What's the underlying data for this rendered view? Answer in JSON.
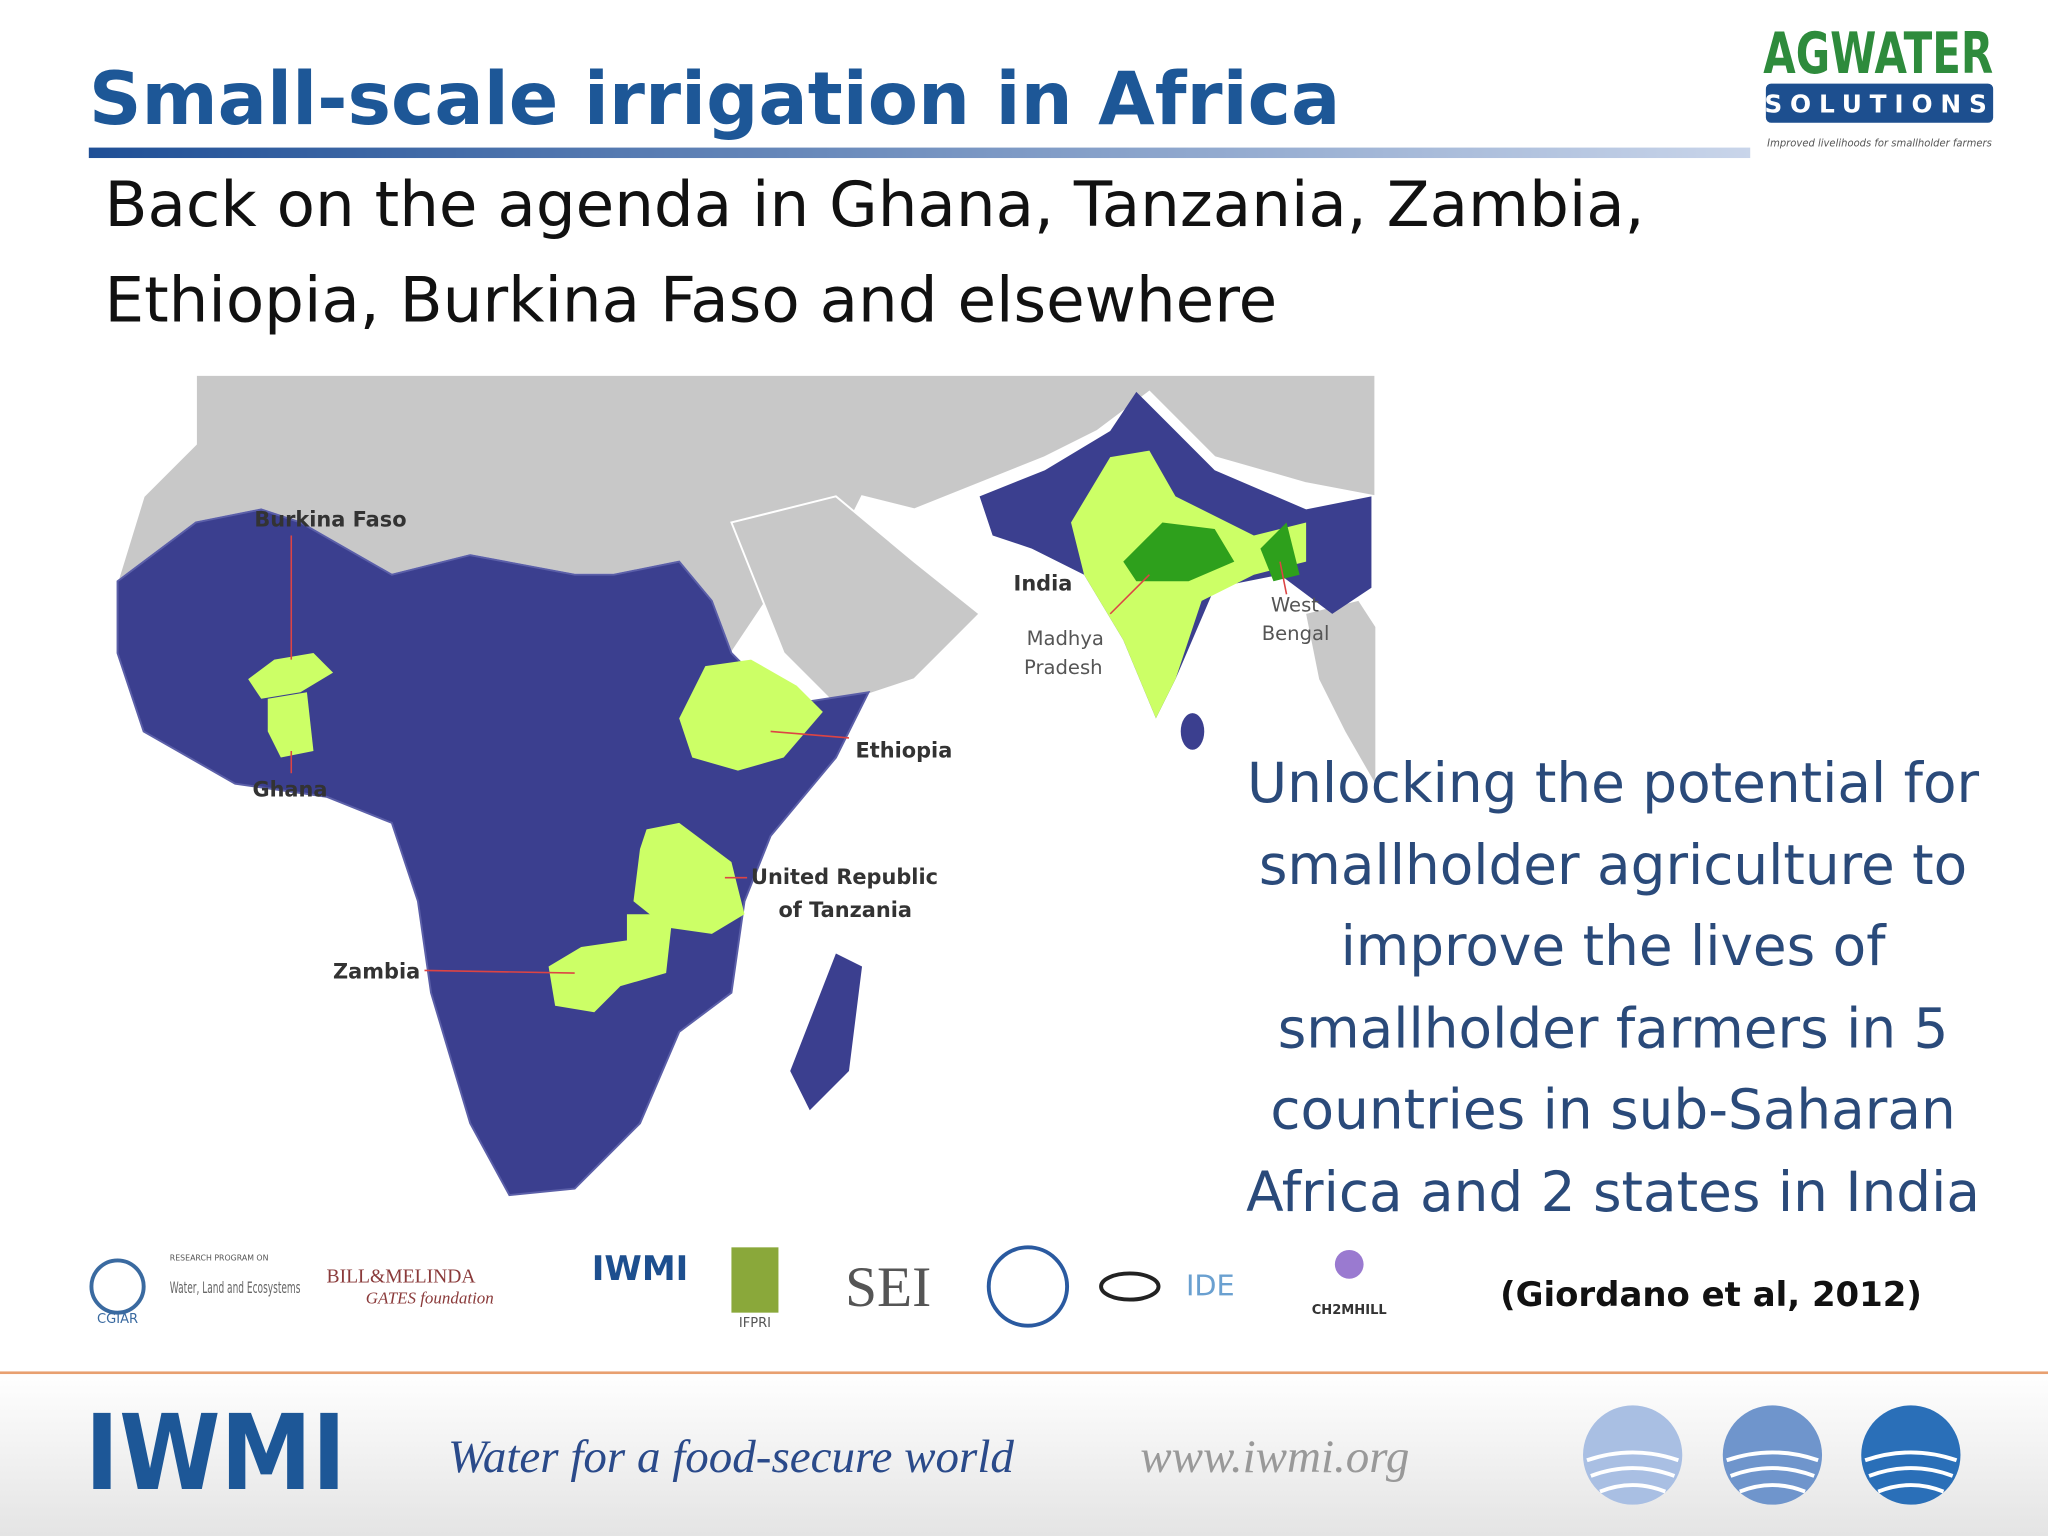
{
  "header": {
    "title": "Small-scale irrigation in Africa",
    "subtitle_lines": [
      "Back on the agenda in Ghana, Tanzania,  Zambia,",
      "Ethiopia, Burkina Faso and elsewhere"
    ],
    "logo": {
      "name": "AGWATER",
      "tagline": "SOLUTIONS",
      "motto": "Improved livelihoods for smallholder farmers"
    }
  },
  "map": {
    "labels": [
      "Burkina Faso",
      "Ghana",
      "Ethiopia",
      "United Republic",
      "of Tanzania",
      "Zambia",
      "India",
      "Madhya",
      "Pradesh",
      "West",
      "Bengal"
    ]
  },
  "note_lines": [
    "Unlocking the potential for",
    "smallholder agriculture to",
    "improve the lives of",
    "smallholder farmers in 5",
    "countries in sub-Saharan",
    "Africa and 2 states in India"
  ],
  "citation": "(Giordano et al, 2012)",
  "partners": [
    "CGIAR",
    "RESEARCH PROGRAM ON",
    "Water, Land and Ecosystems",
    "BILL&MELINDA",
    "GATES foundation",
    "IWMI",
    "IFPRI",
    "SEI",
    "IDE",
    "CH2MHILL"
  ],
  "footer": {
    "org": "IWMI",
    "slogan": "Water for a food-secure world",
    "url": "www.iwmi.org"
  }
}
